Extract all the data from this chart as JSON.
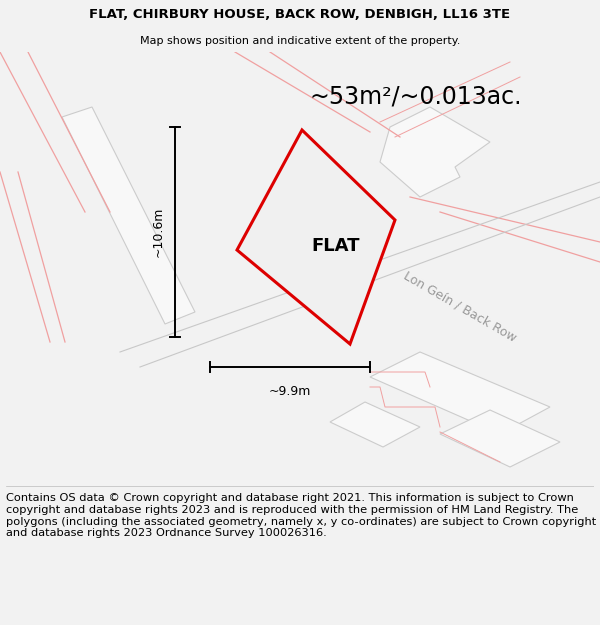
{
  "title_line1": "FLAT, CHIRBURY HOUSE, BACK ROW, DENBIGH, LL16 3TE",
  "title_line2": "Map shows position and indicative extent of the property.",
  "area_text": "~53m²/~0.013ac.",
  "flat_label": "FLAT",
  "dim_horizontal": "~9.9m",
  "dim_vertical": "~10.6m",
  "street_label": "Lon Geín / Back Row",
  "footer_text": "Contains OS data © Crown copyright and database right 2021. This information is subject to Crown copyright and database rights 2023 and is reproduced with the permission of HM Land Registry. The polygons (including the associated geometry, namely x, y co-ordinates) are subject to Crown copyright and database rights 2023 Ordnance Survey 100026316.",
  "bg_color": "#f2f2f2",
  "map_bg_color": "#ebebeb",
  "red_polygon_color": "#dd0000",
  "pink_line_color": "#f0a0a0",
  "gray_line_color": "#c0c0c0",
  "building_color": "#f8f8f8",
  "building_edge_color": "#cccccc",
  "title_fontsize": 9.5,
  "area_fontsize": 17,
  "flat_label_fontsize": 13,
  "dim_fontsize": 9,
  "street_fontsize": 9,
  "footer_fontsize": 8.2
}
